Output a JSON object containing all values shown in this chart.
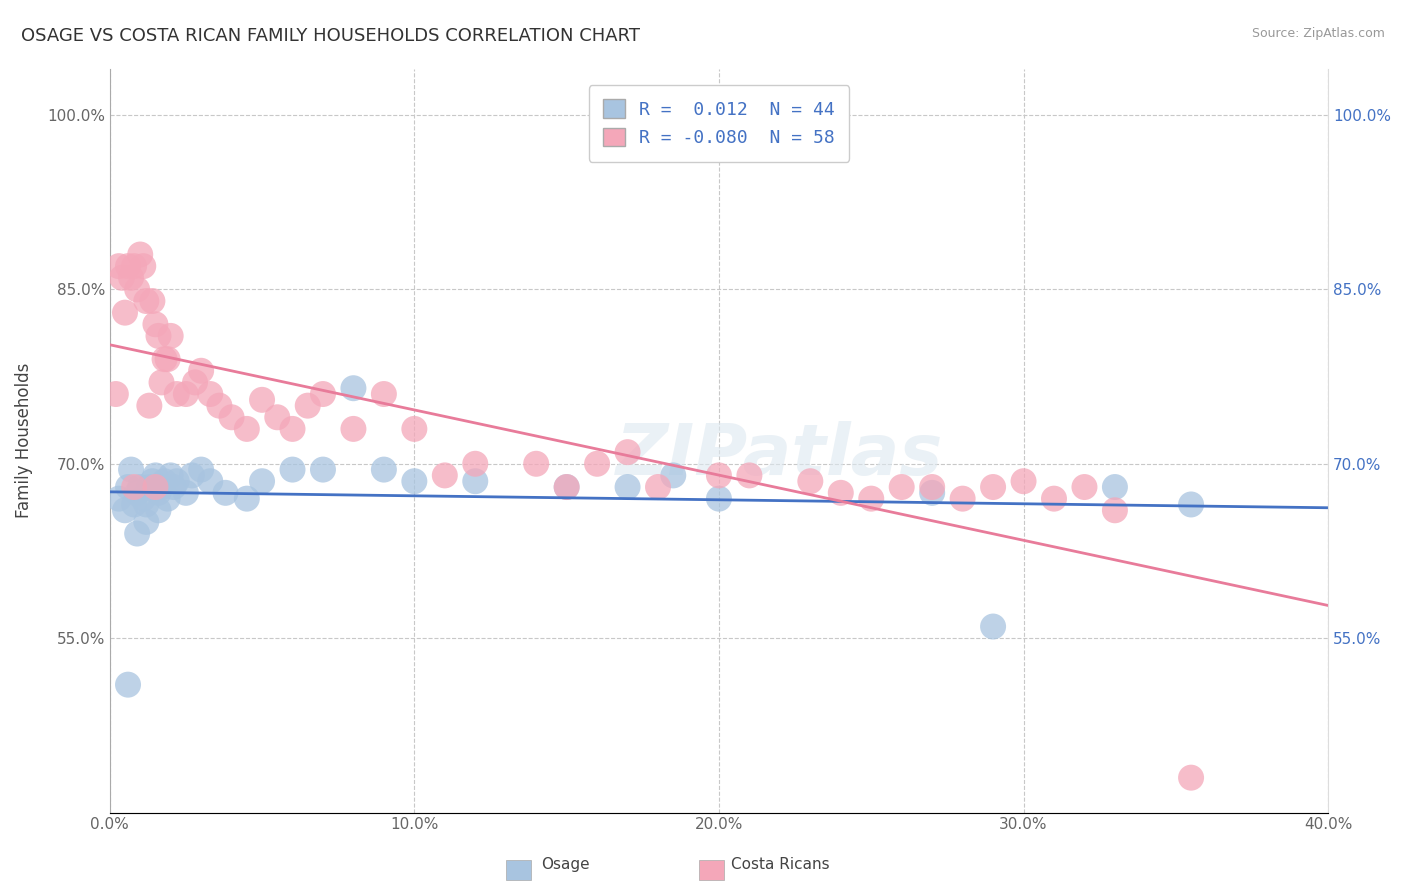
{
  "title": "OSAGE VS COSTA RICAN FAMILY HOUSEHOLDS CORRELATION CHART",
  "source": "Source: ZipAtlas.com",
  "ylabel": "Family Households",
  "xlim": [
    0.0,
    0.4
  ],
  "ylim": [
    0.4,
    1.04
  ],
  "yticks": [
    0.55,
    0.7,
    0.85,
    1.0
  ],
  "ytick_labels": [
    "55.0%",
    "70.0%",
    "85.0%",
    "100.0%"
  ],
  "xticks": [
    0.0,
    0.1,
    0.2,
    0.3,
    0.4
  ],
  "xtick_labels": [
    "0.0%",
    "10.0%",
    "20.0%",
    "30.0%",
    "40.0%"
  ],
  "legend_osage_R": "0.012",
  "legend_osage_N": "44",
  "legend_costa_R": "-0.080",
  "legend_costa_N": "58",
  "osage_color": "#a8c4e0",
  "costa_color": "#f4a7b9",
  "osage_line_color": "#4472c4",
  "costa_line_color": "#e87b9a",
  "background_color": "#ffffff",
  "grid_color": "#c8c8c8",
  "osage_x": [
    0.003,
    0.005,
    0.006,
    0.007,
    0.008,
    0.009,
    0.01,
    0.011,
    0.012,
    0.013,
    0.014,
    0.015,
    0.016,
    0.017,
    0.018,
    0.019,
    0.02,
    0.021,
    0.022,
    0.025,
    0.027,
    0.03,
    0.033,
    0.038,
    0.045,
    0.05,
    0.06,
    0.07,
    0.08,
    0.09,
    0.1,
    0.12,
    0.15,
    0.17,
    0.185,
    0.2,
    0.27,
    0.29,
    0.33,
    0.355,
    0.006,
    0.009,
    0.012,
    0.016
  ],
  "osage_y": [
    0.67,
    0.66,
    0.68,
    0.695,
    0.665,
    0.675,
    0.68,
    0.67,
    0.665,
    0.68,
    0.685,
    0.69,
    0.675,
    0.68,
    0.685,
    0.67,
    0.69,
    0.68,
    0.685,
    0.675,
    0.69,
    0.695,
    0.685,
    0.675,
    0.67,
    0.685,
    0.695,
    0.695,
    0.765,
    0.695,
    0.685,
    0.685,
    0.68,
    0.68,
    0.69,
    0.67,
    0.675,
    0.56,
    0.68,
    0.665,
    0.51,
    0.64,
    0.65,
    0.66
  ],
  "costa_x": [
    0.002,
    0.003,
    0.004,
    0.005,
    0.006,
    0.007,
    0.008,
    0.009,
    0.01,
    0.011,
    0.012,
    0.013,
    0.014,
    0.015,
    0.016,
    0.017,
    0.018,
    0.019,
    0.02,
    0.022,
    0.025,
    0.028,
    0.03,
    0.033,
    0.036,
    0.04,
    0.045,
    0.05,
    0.055,
    0.06,
    0.065,
    0.07,
    0.08,
    0.09,
    0.1,
    0.11,
    0.12,
    0.14,
    0.15,
    0.16,
    0.17,
    0.18,
    0.2,
    0.21,
    0.23,
    0.24,
    0.25,
    0.26,
    0.27,
    0.28,
    0.29,
    0.3,
    0.31,
    0.32,
    0.33,
    0.355,
    0.008,
    0.015
  ],
  "costa_y": [
    0.76,
    0.87,
    0.86,
    0.83,
    0.87,
    0.86,
    0.87,
    0.85,
    0.88,
    0.87,
    0.84,
    0.75,
    0.84,
    0.82,
    0.81,
    0.77,
    0.79,
    0.79,
    0.81,
    0.76,
    0.76,
    0.77,
    0.78,
    0.76,
    0.75,
    0.74,
    0.73,
    0.755,
    0.74,
    0.73,
    0.75,
    0.76,
    0.73,
    0.76,
    0.73,
    0.69,
    0.7,
    0.7,
    0.68,
    0.7,
    0.71,
    0.68,
    0.69,
    0.69,
    0.685,
    0.675,
    0.67,
    0.68,
    0.68,
    0.67,
    0.68,
    0.685,
    0.67,
    0.68,
    0.66,
    0.43,
    0.68,
    0.68
  ]
}
